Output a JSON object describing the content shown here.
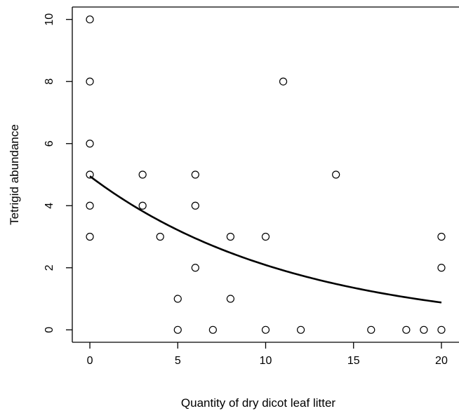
{
  "chart_data": {
    "type": "scatter",
    "xlabel": "Quantity of dry dicot leaf litter",
    "ylabel": "Tetrigid abundance",
    "xlim": [
      -1,
      21
    ],
    "ylim": [
      -0.4,
      10.4
    ],
    "x_ticks": [
      0,
      5,
      10,
      15,
      20
    ],
    "y_ticks": [
      0,
      2,
      4,
      6,
      8,
      10
    ],
    "x_tick_labels": [
      "0",
      "5",
      "10",
      "15",
      "20"
    ],
    "y_tick_labels": [
      "0",
      "2",
      "4",
      "6",
      "8",
      "10"
    ],
    "grid": false,
    "legend": "none",
    "box": "open-right",
    "points": [
      {
        "x": 0,
        "y": 10
      },
      {
        "x": 0,
        "y": 8
      },
      {
        "x": 0,
        "y": 6
      },
      {
        "x": 0,
        "y": 5
      },
      {
        "x": 0,
        "y": 4
      },
      {
        "x": 0,
        "y": 3
      },
      {
        "x": 3,
        "y": 5
      },
      {
        "x": 3,
        "y": 4
      },
      {
        "x": 4,
        "y": 3
      },
      {
        "x": 5,
        "y": 1
      },
      {
        "x": 5,
        "y": 0
      },
      {
        "x": 6,
        "y": 5
      },
      {
        "x": 6,
        "y": 4
      },
      {
        "x": 6,
        "y": 2
      },
      {
        "x": 7,
        "y": 0
      },
      {
        "x": 8,
        "y": 3
      },
      {
        "x": 8,
        "y": 1
      },
      {
        "x": 10,
        "y": 3
      },
      {
        "x": 10,
        "y": 0
      },
      {
        "x": 11,
        "y": 8
      },
      {
        "x": 12,
        "y": 0
      },
      {
        "x": 14,
        "y": 5
      },
      {
        "x": 16,
        "y": 0
      },
      {
        "x": 18,
        "y": 0
      },
      {
        "x": 19,
        "y": 0
      },
      {
        "x": 20,
        "y": 3
      },
      {
        "x": 20,
        "y": 2
      },
      {
        "x": 20,
        "y": 0
      }
    ],
    "fit_curve": {
      "model": "exponential",
      "a": 4.95,
      "b": -0.0863,
      "x_range": [
        0,
        20
      ]
    }
  }
}
